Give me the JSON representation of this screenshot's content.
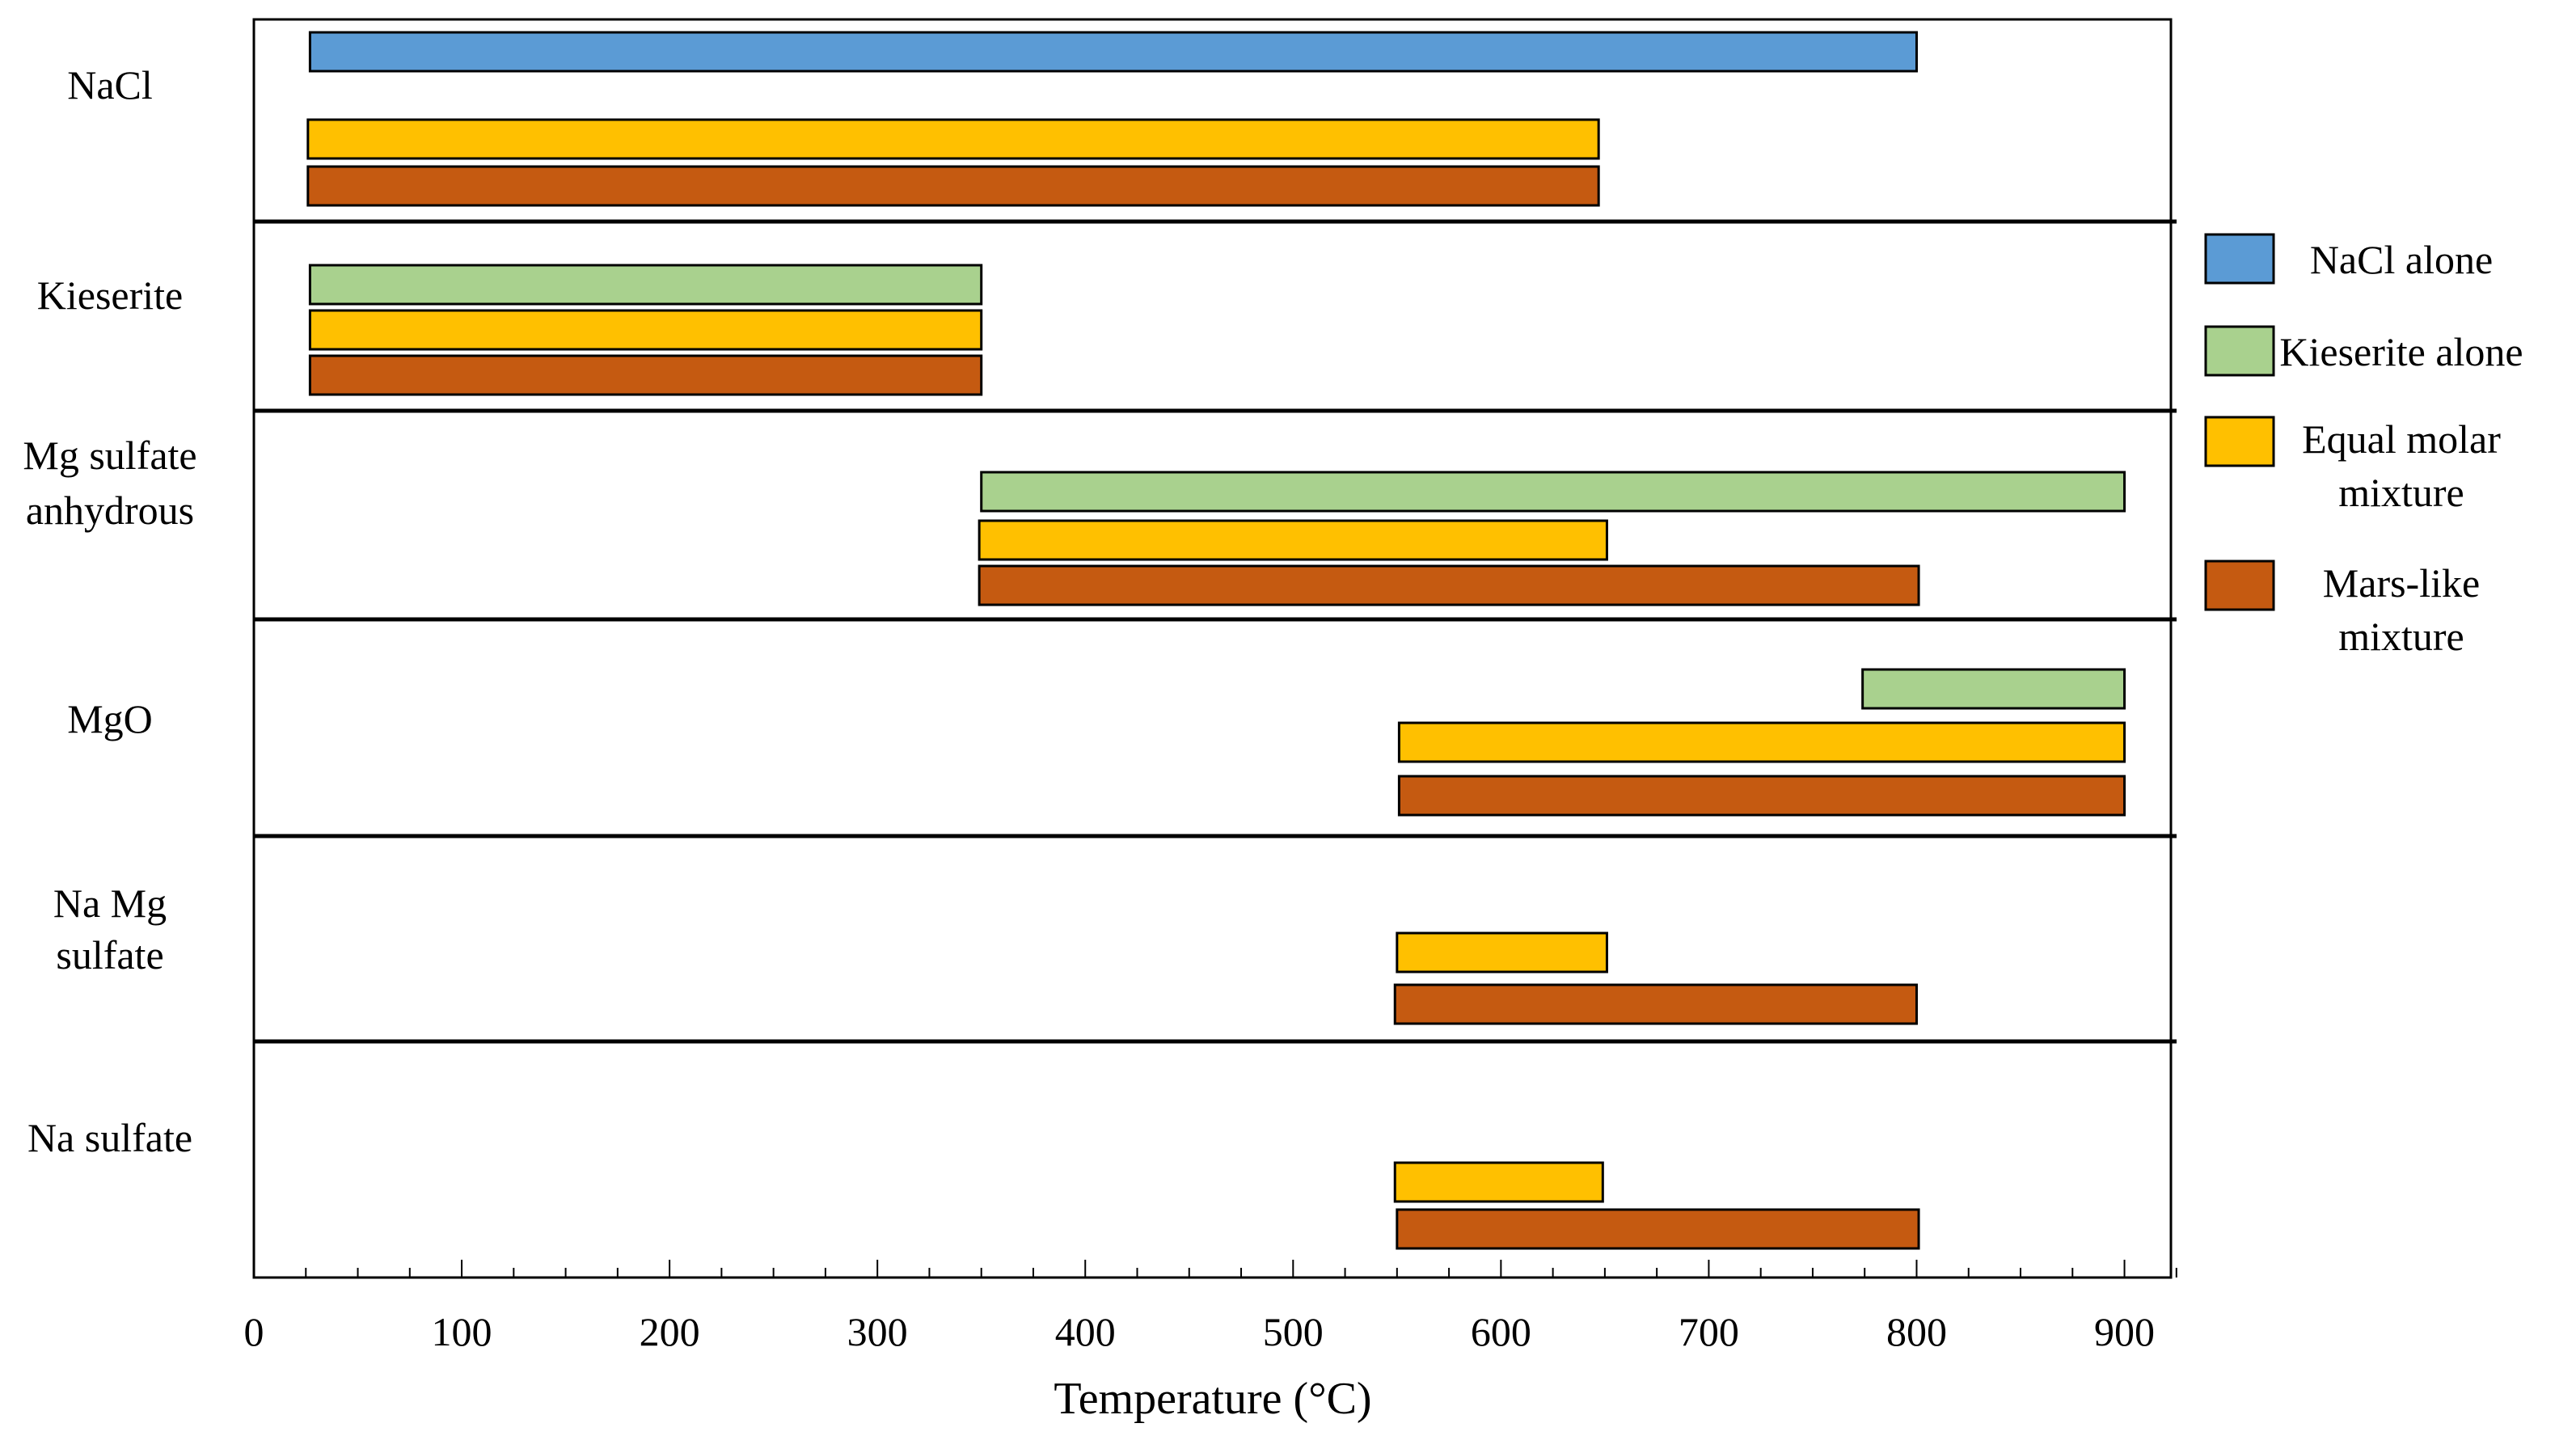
{
  "chart_data": {
    "type": "range-bar",
    "title": "",
    "xlabel": "Temperature (°C)",
    "ylabel": "",
    "xlim": [
      0,
      925
    ],
    "xticks": [
      0,
      100,
      200,
      300,
      400,
      500,
      600,
      700,
      800,
      900
    ],
    "minor_tick_step": 25,
    "grid": false,
    "legend": {
      "placement": "right",
      "entries": [
        {
          "key": "nacl_alone",
          "label_lines": [
            "NaCl alone"
          ],
          "color": "#5b9bd5"
        },
        {
          "key": "kieserite_alone",
          "label_lines": [
            "Kieserite alone"
          ],
          "color": "#a9d18e"
        },
        {
          "key": "equal_molar",
          "label_lines": [
            "Equal molar",
            "mixture"
          ],
          "color": "#ffc000"
        },
        {
          "key": "mars_like",
          "label_lines": [
            "Mars-like",
            "mixture"
          ],
          "color": "#c55a11"
        }
      ]
    },
    "groups": [
      {
        "label_lines": [
          "NaCl"
        ],
        "bars": [
          {
            "series": "nacl_alone",
            "start": 27,
            "end": 800
          },
          {
            "series": "equal_molar",
            "start": 26,
            "end": 647
          },
          {
            "series": "mars_like",
            "start": 26,
            "end": 647
          }
        ]
      },
      {
        "label_lines": [
          "Kieserite"
        ],
        "bars": [
          {
            "series": "kieserite_alone",
            "start": 27,
            "end": 350
          },
          {
            "series": "equal_molar",
            "start": 27,
            "end": 350
          },
          {
            "series": "mars_like",
            "start": 27,
            "end": 350
          }
        ]
      },
      {
        "label_lines": [
          "Mg sulfate",
          "anhydrous"
        ],
        "bars": [
          {
            "series": "kieserite_alone",
            "start": 350,
            "end": 900
          },
          {
            "series": "equal_molar",
            "start": 349,
            "end": 651
          },
          {
            "series": "mars_like",
            "start": 349,
            "end": 801
          }
        ]
      },
      {
        "label_lines": [
          "MgO"
        ],
        "bars": [
          {
            "series": "kieserite_alone",
            "start": 774,
            "end": 900
          },
          {
            "series": "equal_molar",
            "start": 551,
            "end": 900
          },
          {
            "series": "mars_like",
            "start": 551,
            "end": 900
          }
        ]
      },
      {
        "label_lines": [
          "Na Mg",
          "sulfate"
        ],
        "bars": [
          {
            "series": "equal_molar",
            "start": 550,
            "end": 651
          },
          {
            "series": "mars_like",
            "start": 549,
            "end": 800
          }
        ]
      },
      {
        "label_lines": [
          "Na sulfate"
        ],
        "bars": [
          {
            "series": "equal_molar",
            "start": 549,
            "end": 649
          },
          {
            "series": "mars_like",
            "start": 550,
            "end": 801
          }
        ]
      }
    ]
  }
}
